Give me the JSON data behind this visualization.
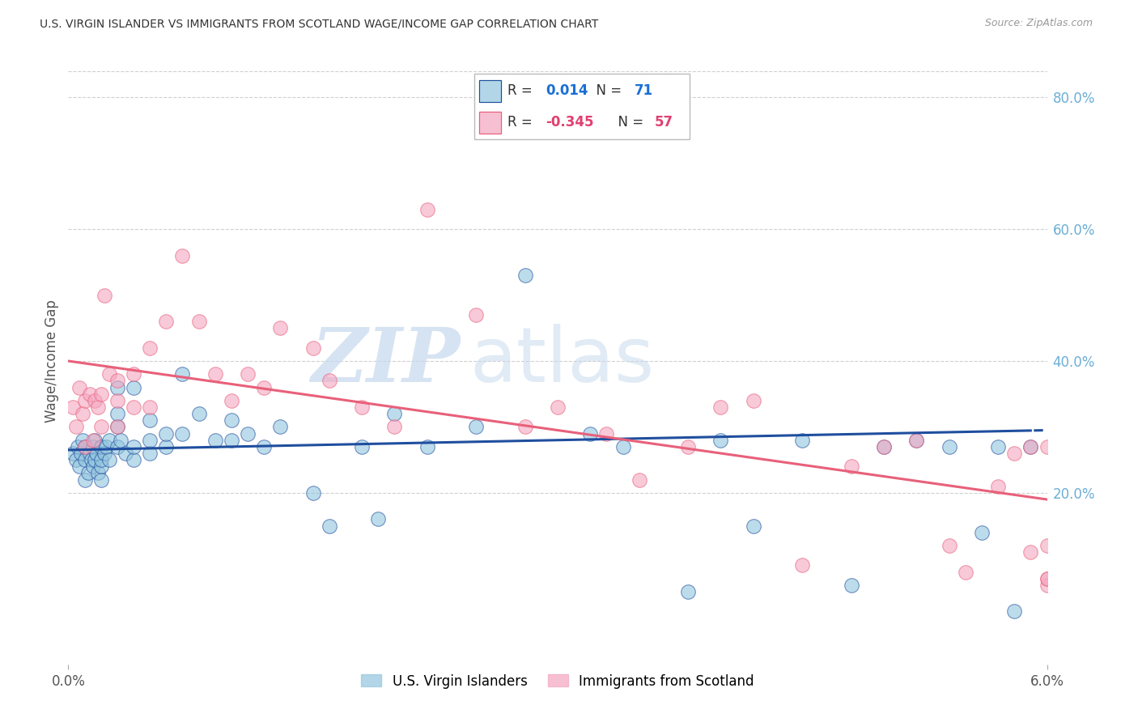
{
  "title": "U.S. VIRGIN ISLANDER VS IMMIGRANTS FROM SCOTLAND WAGE/INCOME GAP CORRELATION CHART",
  "source": "Source: ZipAtlas.com",
  "ylabel": "Wage/Income Gap",
  "x_min": 0.0,
  "x_max": 0.06,
  "y_min": -0.06,
  "y_max": 0.86,
  "blue_R": "0.014",
  "blue_N": "71",
  "pink_R": "-0.345",
  "pink_N": "57",
  "blue_color": "#92c5de",
  "pink_color": "#f4a6c0",
  "blue_trend_color": "#1f4e9e",
  "pink_trend_color": "#e8607a",
  "legend_label_blue": "U.S. Virgin Islanders",
  "legend_label_pink": "Immigrants from Scotland",
  "watermark_ZIP": "ZIP",
  "watermark_atlas": "atlas",
  "blue_scatter_x": [
    0.0003,
    0.0005,
    0.0006,
    0.0007,
    0.0008,
    0.0009,
    0.001,
    0.001,
    0.001,
    0.0012,
    0.0013,
    0.0014,
    0.0015,
    0.0015,
    0.0016,
    0.0016,
    0.0017,
    0.0018,
    0.002,
    0.002,
    0.002,
    0.002,
    0.0022,
    0.0023,
    0.0025,
    0.0025,
    0.003,
    0.003,
    0.003,
    0.003,
    0.0032,
    0.0035,
    0.004,
    0.004,
    0.004,
    0.005,
    0.005,
    0.005,
    0.006,
    0.006,
    0.007,
    0.007,
    0.008,
    0.009,
    0.01,
    0.01,
    0.011,
    0.012,
    0.013,
    0.015,
    0.016,
    0.018,
    0.019,
    0.02,
    0.022,
    0.025,
    0.028,
    0.032,
    0.034,
    0.038,
    0.04,
    0.042,
    0.045,
    0.048,
    0.05,
    0.052,
    0.054,
    0.056,
    0.057,
    0.058,
    0.059
  ],
  "blue_scatter_y": [
    0.26,
    0.25,
    0.27,
    0.24,
    0.26,
    0.28,
    0.22,
    0.25,
    0.27,
    0.23,
    0.26,
    0.25,
    0.24,
    0.27,
    0.25,
    0.28,
    0.26,
    0.23,
    0.22,
    0.24,
    0.25,
    0.27,
    0.26,
    0.27,
    0.25,
    0.28,
    0.27,
    0.3,
    0.32,
    0.36,
    0.28,
    0.26,
    0.25,
    0.27,
    0.36,
    0.26,
    0.28,
    0.31,
    0.27,
    0.29,
    0.29,
    0.38,
    0.32,
    0.28,
    0.28,
    0.31,
    0.29,
    0.27,
    0.3,
    0.2,
    0.15,
    0.27,
    0.16,
    0.32,
    0.27,
    0.3,
    0.53,
    0.29,
    0.27,
    0.05,
    0.28,
    0.15,
    0.28,
    0.06,
    0.27,
    0.28,
    0.27,
    0.14,
    0.27,
    0.02,
    0.27
  ],
  "pink_scatter_x": [
    0.0003,
    0.0005,
    0.0007,
    0.0009,
    0.001,
    0.001,
    0.0013,
    0.0015,
    0.0016,
    0.0018,
    0.002,
    0.002,
    0.0022,
    0.0025,
    0.003,
    0.003,
    0.003,
    0.004,
    0.004,
    0.005,
    0.005,
    0.006,
    0.007,
    0.008,
    0.009,
    0.01,
    0.011,
    0.012,
    0.013,
    0.015,
    0.016,
    0.018,
    0.02,
    0.022,
    0.025,
    0.028,
    0.03,
    0.033,
    0.035,
    0.038,
    0.04,
    0.042,
    0.045,
    0.048,
    0.05,
    0.052,
    0.054,
    0.055,
    0.057,
    0.058,
    0.059,
    0.059,
    0.06,
    0.06,
    0.06,
    0.06,
    0.06
  ],
  "pink_scatter_y": [
    0.33,
    0.3,
    0.36,
    0.32,
    0.27,
    0.34,
    0.35,
    0.28,
    0.34,
    0.33,
    0.3,
    0.35,
    0.5,
    0.38,
    0.3,
    0.34,
    0.37,
    0.33,
    0.38,
    0.33,
    0.42,
    0.46,
    0.56,
    0.46,
    0.38,
    0.34,
    0.38,
    0.36,
    0.45,
    0.42,
    0.37,
    0.33,
    0.3,
    0.63,
    0.47,
    0.3,
    0.33,
    0.29,
    0.22,
    0.27,
    0.33,
    0.34,
    0.09,
    0.24,
    0.27,
    0.28,
    0.12,
    0.08,
    0.21,
    0.26,
    0.11,
    0.27,
    0.27,
    0.06,
    0.07,
    0.12,
    0.07
  ]
}
